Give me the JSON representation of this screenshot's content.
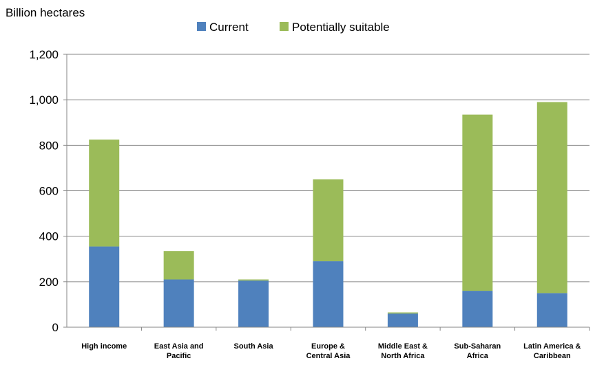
{
  "chart_data": {
    "type": "bar",
    "stacked": true,
    "ylabel": "Billion hectares",
    "ylim": [
      0,
      1200
    ],
    "yticks": [
      "0",
      "200",
      "400",
      "600",
      "800",
      "1,000",
      "1,200"
    ],
    "ytick_values": [
      0,
      200,
      400,
      600,
      800,
      1000,
      1200
    ],
    "categories": [
      [
        "High income"
      ],
      [
        "East Asia and",
        "Pacific"
      ],
      [
        "South Asia"
      ],
      [
        "Europe &",
        "Central Asia"
      ],
      [
        "Middle East &",
        "North Africa"
      ],
      [
        "Sub-Saharan",
        "Africa"
      ],
      [
        "Latin America &",
        "Caribbean"
      ]
    ],
    "series": [
      {
        "name": "Current",
        "color": "#4f81bd",
        "values": [
          355,
          210,
          205,
          290,
          60,
          160,
          150
        ]
      },
      {
        "name": "Potentially suitable",
        "color": "#9bbb59",
        "values": [
          470,
          125,
          5,
          360,
          5,
          775,
          840
        ]
      }
    ],
    "grid": true,
    "legend": "top-center"
  }
}
